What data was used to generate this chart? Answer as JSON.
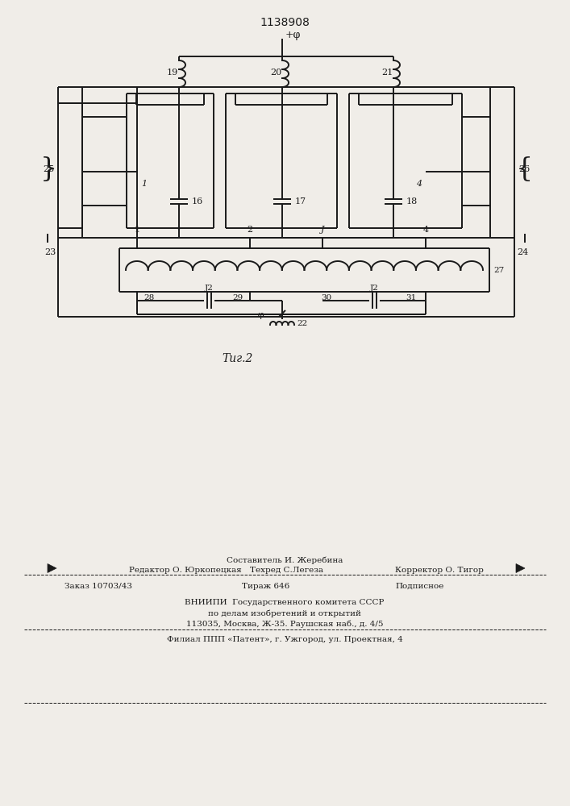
{
  "title": "1138908",
  "fig_label": "Τиг.2",
  "bg": "#f0ede8",
  "lc": "#1a1a1a",
  "lw": 1.4,
  "footer": {
    "line1": "Составитель И. Жеребина",
    "line2_l": "Редактор О. Юркопецкая",
    "line2_m": "Техред С.Легеза",
    "line2_r": "Корректор О. Тигор",
    "line3_l": "Заказ 10703/43",
    "line3_m": "Тираж 646",
    "line3_r": "Подписное",
    "line4": "ВНИИПИ  Государственного комитета СССР",
    "line5": "по делам изобретений и открытий",
    "line6": "113035, Москва, Ж-35. Раушская наб., д. 4/5",
    "line7": "Филиал ППП «Патент», г. Ужгород, ул. Проектная, 4"
  }
}
